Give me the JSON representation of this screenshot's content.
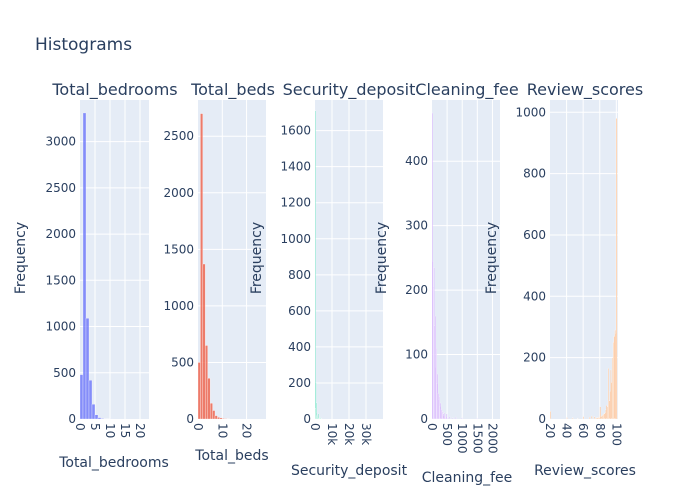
{
  "title": "Histograms",
  "chart_data": [
    {
      "type": "histogram",
      "title": "Total_bedrooms",
      "xlabel": "Total_bedrooms",
      "ylabel": "Frequency",
      "color": "#636efa",
      "xlim": [
        0,
        23
      ],
      "ylim": [
        0,
        3450
      ],
      "x_ticks": [
        "0",
        "5",
        "10",
        "15",
        "20"
      ],
      "y_ticks": [
        "0",
        "500",
        "1000",
        "1500",
        "2000",
        "2500",
        "3000"
      ],
      "grid": true,
      "bins": [
        {
          "x0": 0,
          "x1": 1,
          "count": 480
        },
        {
          "x0": 1,
          "x1": 2,
          "count": 3310
        },
        {
          "x0": 2,
          "x1": 3,
          "count": 1090
        },
        {
          "x0": 3,
          "x1": 4,
          "count": 420
        },
        {
          "x0": 4,
          "x1": 5,
          "count": 160
        },
        {
          "x0": 5,
          "x1": 6,
          "count": 45
        },
        {
          "x0": 6,
          "x1": 7,
          "count": 15
        },
        {
          "x0": 7,
          "x1": 8,
          "count": 6
        },
        {
          "x0": 8,
          "x1": 9,
          "count": 3
        },
        {
          "x0": 9,
          "x1": 10,
          "count": 2
        },
        {
          "x0": 10,
          "x1": 11,
          "count": 1
        }
      ]
    },
    {
      "type": "histogram",
      "title": "Total_beds",
      "xlabel": "Total_beds",
      "ylabel": "Frequency",
      "color": "#ef553b",
      "xlim": [
        0,
        28
      ],
      "ylim": [
        0,
        2820
      ],
      "x_ticks": [
        "0",
        "10",
        "20"
      ],
      "y_ticks": [
        "0",
        "500",
        "1000",
        "1500",
        "2000",
        "2500"
      ],
      "grid": true,
      "bins": [
        {
          "x0": 0,
          "x1": 1,
          "count": 500
        },
        {
          "x0": 1,
          "x1": 2,
          "count": 2700
        },
        {
          "x0": 2,
          "x1": 3,
          "count": 1370
        },
        {
          "x0": 3,
          "x1": 4,
          "count": 650
        },
        {
          "x0": 4,
          "x1": 5,
          "count": 360
        },
        {
          "x0": 5,
          "x1": 6,
          "count": 140
        },
        {
          "x0": 6,
          "x1": 7,
          "count": 75
        },
        {
          "x0": 7,
          "x1": 8,
          "count": 30
        },
        {
          "x0": 8,
          "x1": 9,
          "count": 15
        },
        {
          "x0": 9,
          "x1": 10,
          "count": 10
        },
        {
          "x0": 10,
          "x1": 11,
          "count": 5
        },
        {
          "x0": 11,
          "x1": 12,
          "count": 4
        },
        {
          "x0": 12,
          "x1": 13,
          "count": 3
        }
      ]
    },
    {
      "type": "histogram",
      "title": "Security_deposit",
      "xlabel": "Security_deposit",
      "ylabel": "Frequency",
      "color": "#00cc96",
      "xlim": [
        0,
        40000
      ],
      "ylim": [
        0,
        1770
      ],
      "x_ticks": [
        "0",
        "10k",
        "20k",
        "30k"
      ],
      "y_ticks": [
        "0",
        "200",
        "400",
        "600",
        "800",
        "1000",
        "1200",
        "1400",
        "1600"
      ],
      "grid": true,
      "bins": [
        {
          "x0": 0,
          "x1": 200,
          "count": 1710
        },
        {
          "x0": 200,
          "x1": 400,
          "count": 60
        },
        {
          "x0": 400,
          "x1": 600,
          "count": 200
        },
        {
          "x0": 600,
          "x1": 800,
          "count": 35
        },
        {
          "x0": 800,
          "x1": 1000,
          "count": 90
        },
        {
          "x0": 1000,
          "x1": 1200,
          "count": 20
        },
        {
          "x0": 1200,
          "x1": 1400,
          "count": 15
        },
        {
          "x0": 1400,
          "x1": 1600,
          "count": 10
        },
        {
          "x0": 1600,
          "x1": 1800,
          "count": 8
        },
        {
          "x0": 1800,
          "x1": 2000,
          "count": 6
        },
        {
          "x0": 2000,
          "x1": 2200,
          "count": 30
        },
        {
          "x0": 2200,
          "x1": 2400,
          "count": 5
        },
        {
          "x0": 2400,
          "x1": 2600,
          "count": 4
        },
        {
          "x0": 2600,
          "x1": 2800,
          "count": 3
        },
        {
          "x0": 2800,
          "x1": 3000,
          "count": 3
        },
        {
          "x0": 3000,
          "x1": 3200,
          "count": 8
        },
        {
          "x0": 3200,
          "x1": 3400,
          "count": 2
        },
        {
          "x0": 3400,
          "x1": 3600,
          "count": 2
        },
        {
          "x0": 3600,
          "x1": 3800,
          "count": 1
        },
        {
          "x0": 3800,
          "x1": 4000,
          "count": 1
        }
      ]
    },
    {
      "type": "histogram",
      "title": "Cleaning_fee",
      "xlabel": "Cleaning_fee",
      "ylabel": "Frequency",
      "color": "#ab63fa",
      "xlim": [
        0,
        2250
      ],
      "ylim": [
        0,
        495
      ],
      "x_ticks": [
        "0",
        "500",
        "1000",
        "1500",
        "2000"
      ],
      "y_ticks": [
        "0",
        "100",
        "200",
        "300",
        "400"
      ],
      "grid": true,
      "bins": [
        {
          "x0": 0,
          "x1": 20,
          "count": 475
        },
        {
          "x0": 20,
          "x1": 40,
          "count": 245
        },
        {
          "x0": 40,
          "x1": 60,
          "count": 205
        },
        {
          "x0": 60,
          "x1": 80,
          "count": 235
        },
        {
          "x0": 80,
          "x1": 100,
          "count": 145
        },
        {
          "x0": 100,
          "x1": 120,
          "count": 160
        },
        {
          "x0": 120,
          "x1": 140,
          "count": 80
        },
        {
          "x0": 140,
          "x1": 160,
          "count": 110
        },
        {
          "x0": 160,
          "x1": 180,
          "count": 55
        },
        {
          "x0": 180,
          "x1": 200,
          "count": 70
        },
        {
          "x0": 200,
          "x1": 220,
          "count": 40
        },
        {
          "x0": 220,
          "x1": 240,
          "count": 30
        },
        {
          "x0": 240,
          "x1": 260,
          "count": 35
        },
        {
          "x0": 260,
          "x1": 280,
          "count": 20
        },
        {
          "x0": 280,
          "x1": 300,
          "count": 25
        },
        {
          "x0": 300,
          "x1": 320,
          "count": 15
        },
        {
          "x0": 320,
          "x1": 340,
          "count": 10
        },
        {
          "x0": 340,
          "x1": 360,
          "count": 12
        },
        {
          "x0": 360,
          "x1": 380,
          "count": 8
        },
        {
          "x0": 380,
          "x1": 400,
          "count": 6
        },
        {
          "x0": 400,
          "x1": 420,
          "count": 10
        },
        {
          "x0": 420,
          "x1": 440,
          "count": 4
        },
        {
          "x0": 440,
          "x1": 460,
          "count": 3
        },
        {
          "x0": 460,
          "x1": 480,
          "count": 3
        },
        {
          "x0": 480,
          "x1": 500,
          "count": 8
        },
        {
          "x0": 520,
          "x1": 540,
          "count": 2
        },
        {
          "x0": 580,
          "x1": 600,
          "count": 4
        },
        {
          "x0": 680,
          "x1": 700,
          "count": 2
        },
        {
          "x0": 780,
          "x1": 800,
          "count": 3
        },
        {
          "x0": 980,
          "x1": 1000,
          "count": 2
        },
        {
          "x0": 1480,
          "x1": 1500,
          "count": 1
        }
      ]
    },
    {
      "type": "histogram",
      "title": "Review_scores",
      "xlabel": "Review_scores",
      "ylabel": "Frequency",
      "color": "#ffa15a",
      "xlim": [
        20,
        102
      ],
      "ylim": [
        0,
        1040
      ],
      "x_ticks": [
        "20",
        "40",
        "60",
        "80",
        "100"
      ],
      "y_ticks": [
        "0",
        "200",
        "400",
        "600",
        "800",
        "1000"
      ],
      "grid": true,
      "bins": [
        {
          "x0": 20,
          "x1": 21,
          "count": 25
        },
        {
          "x0": 40,
          "x1": 41,
          "count": 5
        },
        {
          "x0": 47,
          "x1": 48,
          "count": 4
        },
        {
          "x0": 53,
          "x1": 54,
          "count": 3
        },
        {
          "x0": 60,
          "x1": 61,
          "count": 8
        },
        {
          "x0": 67,
          "x1": 68,
          "count": 6
        },
        {
          "x0": 70,
          "x1": 71,
          "count": 10
        },
        {
          "x0": 73,
          "x1": 74,
          "count": 8
        },
        {
          "x0": 75,
          "x1": 76,
          "count": 3
        },
        {
          "x0": 76,
          "x1": 77,
          "count": 5
        },
        {
          "x0": 77,
          "x1": 78,
          "count": 4
        },
        {
          "x0": 78,
          "x1": 79,
          "count": 6
        },
        {
          "x0": 79,
          "x1": 80,
          "count": 5
        },
        {
          "x0": 80,
          "x1": 81,
          "count": 40
        },
        {
          "x0": 81,
          "x1": 82,
          "count": 8
        },
        {
          "x0": 82,
          "x1": 83,
          "count": 10
        },
        {
          "x0": 83,
          "x1": 84,
          "count": 12
        },
        {
          "x0": 84,
          "x1": 85,
          "count": 15
        },
        {
          "x0": 85,
          "x1": 86,
          "count": 18
        },
        {
          "x0": 86,
          "x1": 87,
          "count": 20
        },
        {
          "x0": 87,
          "x1": 88,
          "count": 30
        },
        {
          "x0": 88,
          "x1": 89,
          "count": 45
        },
        {
          "x0": 89,
          "x1": 90,
          "count": 40
        },
        {
          "x0": 90,
          "x1": 91,
          "count": 165
        },
        {
          "x0": 91,
          "x1": 92,
          "count": 60
        },
        {
          "x0": 92,
          "x1": 93,
          "count": 90
        },
        {
          "x0": 93,
          "x1": 94,
          "count": 160
        },
        {
          "x0": 94,
          "x1": 95,
          "count": 120
        },
        {
          "x0": 95,
          "x1": 96,
          "count": 200
        },
        {
          "x0": 96,
          "x1": 97,
          "count": 250
        },
        {
          "x0": 97,
          "x1": 98,
          "count": 270
        },
        {
          "x0": 98,
          "x1": 99,
          "count": 290
        },
        {
          "x0": 99,
          "x1": 100,
          "count": 280
        },
        {
          "x0": 100,
          "x1": 101,
          "count": 980
        }
      ]
    }
  ]
}
